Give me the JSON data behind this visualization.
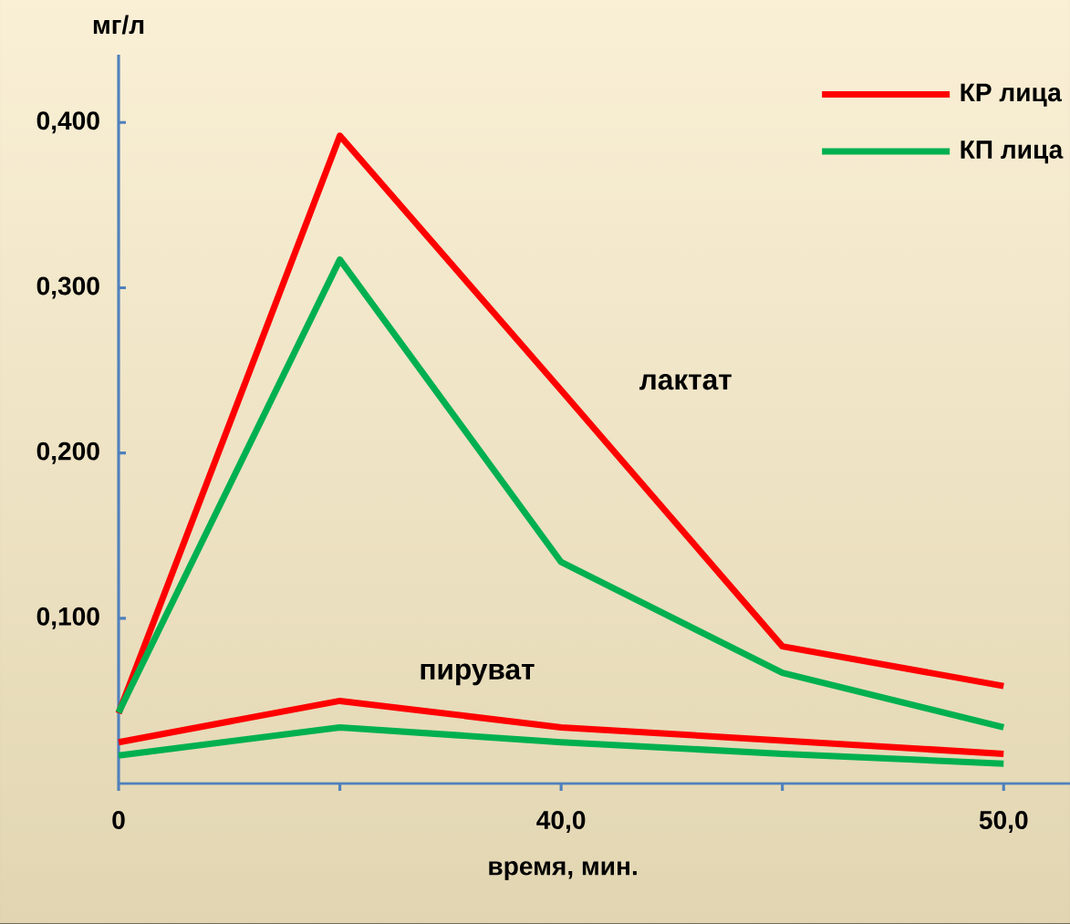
{
  "chart_data": {
    "type": "line",
    "ylabel": "мг/л",
    "xlabel": "время, мин.",
    "categories": [
      "0",
      null,
      "40,0",
      null,
      "50,0"
    ],
    "ylim": [
      0,
      0.441
    ],
    "yticks": [
      {
        "value": 0.1,
        "label": "0,100"
      },
      {
        "value": 0.2,
        "label": "0,200"
      },
      {
        "value": 0.3,
        "label": "0,300"
      },
      {
        "value": 0.4,
        "label": "0,400"
      }
    ],
    "legend": "top right",
    "marker": "none",
    "series": [
      {
        "name": "КР лица",
        "color": "#ff0000",
        "values": [
          0.0425,
          0.392,
          0.238,
          0.083,
          0.059
        ]
      },
      {
        "name": "КП лица",
        "color": "#00b050",
        "values": [
          0.043,
          0.317,
          0.134,
          0.067,
          0.034
        ]
      },
      {
        "color": "#ff0000",
        "values": [
          0.025,
          0.05,
          0.034,
          0.026,
          0.018
        ]
      },
      {
        "color": "#00b050",
        "values": [
          0.017,
          0.034,
          0.025,
          0.018,
          0.012
        ]
      }
    ],
    "annotations": [
      "лактат",
      "пируват"
    ]
  }
}
